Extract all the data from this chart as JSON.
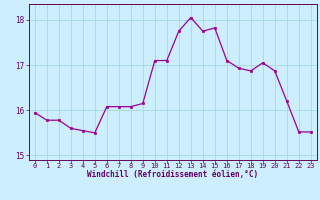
{
  "x": [
    0,
    1,
    2,
    3,
    4,
    5,
    6,
    7,
    8,
    9,
    10,
    11,
    12,
    13,
    14,
    15,
    16,
    17,
    18,
    19,
    20,
    21,
    22,
    23
  ],
  "y": [
    15.95,
    15.78,
    15.78,
    15.6,
    15.55,
    15.5,
    16.08,
    16.08,
    16.08,
    16.15,
    17.1,
    17.1,
    17.75,
    18.05,
    17.75,
    17.82,
    17.1,
    16.93,
    16.87,
    17.05,
    16.87,
    16.2,
    15.52,
    15.52
  ],
  "line_color": "#990099",
  "marker": "s",
  "marker_size": 2.0,
  "bg_color": "#cceeff",
  "grid_color": "#aadddd",
  "xlabel": "Windchill (Refroidissement éolien,°C)",
  "xlabel_color": "#660066",
  "tick_color": "#660066",
  "ylim": [
    14.9,
    18.35
  ],
  "xlim": [
    -0.5,
    23.5
  ],
  "yticks": [
    15,
    16,
    17,
    18
  ],
  "xticks": [
    0,
    1,
    2,
    3,
    4,
    5,
    6,
    7,
    8,
    9,
    10,
    11,
    12,
    13,
    14,
    15,
    16,
    17,
    18,
    19,
    20,
    21,
    22,
    23
  ]
}
